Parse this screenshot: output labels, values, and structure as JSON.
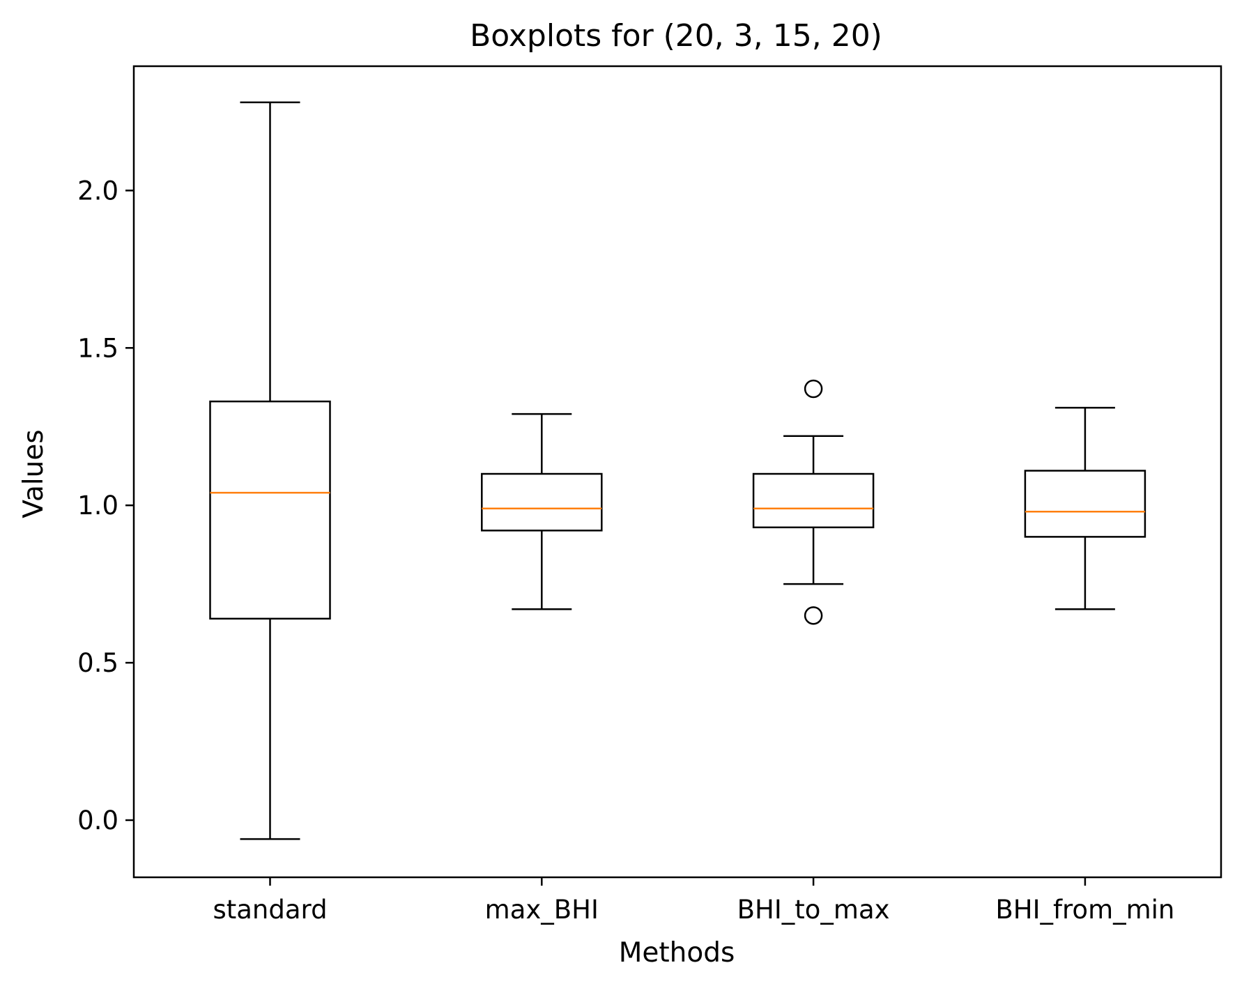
{
  "chart_data": {
    "type": "box",
    "title": "Boxplots for (20, 3, 15, 20)",
    "xlabel": "Methods",
    "ylabel": "Values",
    "ylim": [
      -0.18,
      2.4
    ],
    "yticks": [
      "0.0",
      "0.5",
      "1.0",
      "1.5",
      "2.0"
    ],
    "ytick_values": [
      0.0,
      0.5,
      1.0,
      1.5,
      2.0
    ],
    "categories": [
      "standard",
      "max_BHI",
      "BHI_to_max",
      "BHI_from_min"
    ],
    "boxes": [
      {
        "name": "standard",
        "whisker_low": -0.06,
        "q1": 0.64,
        "median": 1.04,
        "q3": 1.33,
        "whisker_high": 2.28,
        "outliers": []
      },
      {
        "name": "max_BHI",
        "whisker_low": 0.67,
        "q1": 0.92,
        "median": 0.99,
        "q3": 1.1,
        "whisker_high": 1.29,
        "outliers": []
      },
      {
        "name": "BHI_to_max",
        "whisker_low": 0.75,
        "q1": 0.93,
        "median": 0.99,
        "q3": 1.1,
        "whisker_high": 1.22,
        "outliers": [
          1.37,
          0.65
        ]
      },
      {
        "name": "BHI_from_min",
        "whisker_low": 0.67,
        "q1": 0.9,
        "median": 0.98,
        "q3": 1.11,
        "whisker_high": 1.31,
        "outliers": []
      }
    ],
    "colors": {
      "box": "#000000",
      "median": "#ff7f0e"
    },
    "grid": false,
    "legend": "none"
  }
}
